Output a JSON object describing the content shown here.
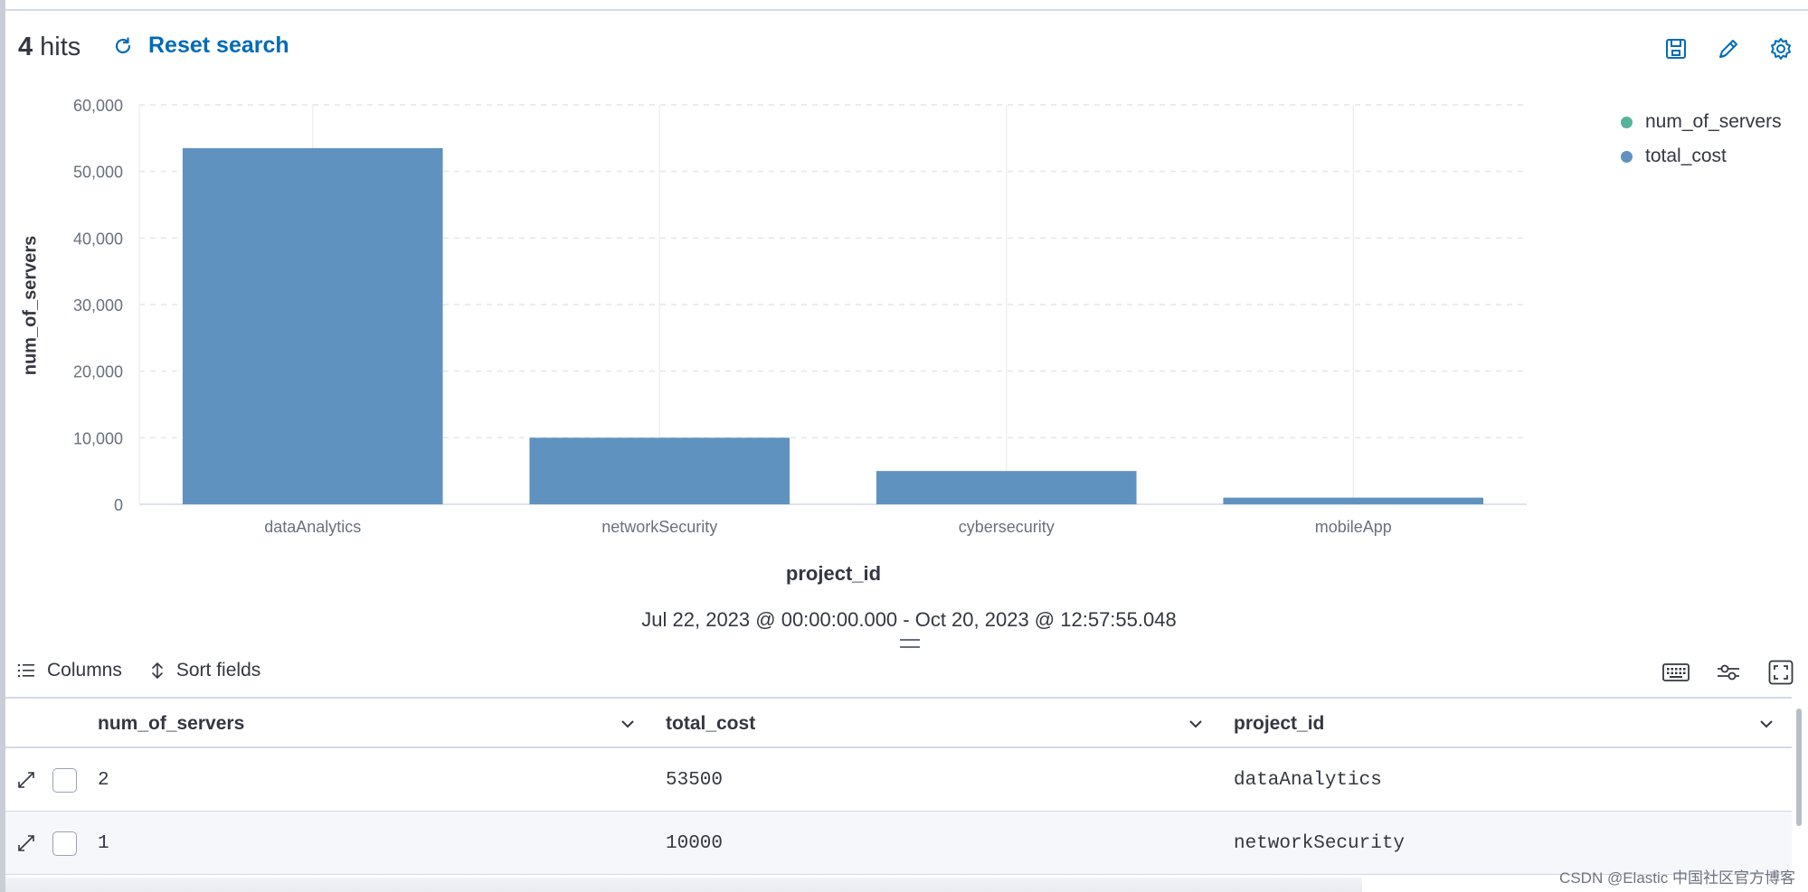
{
  "header": {
    "hits_count": "4",
    "hits_label": "hits",
    "reset_label": "Reset search",
    "icons": [
      "save-icon",
      "pencil-icon",
      "gear-icon"
    ]
  },
  "chart_data": {
    "type": "bar",
    "title": "",
    "categories": [
      "dataAnalytics",
      "networkSecurity",
      "cybersecurity",
      "mobileApp"
    ],
    "series": [
      {
        "name": "total_cost",
        "values": [
          53500,
          10000,
          5000,
          1000
        ]
      }
    ],
    "xlabel": "project_id",
    "ylabel": "num_of_servers",
    "ylim": [
      0,
      60000
    ],
    "yticks": [
      0,
      10000,
      20000,
      30000,
      40000,
      50000,
      60000
    ],
    "ytick_labels": [
      "0",
      "10,000",
      "20,000",
      "30,000",
      "40,000",
      "50,000",
      "60,000"
    ],
    "bar_color": "#6092c0",
    "grid": true,
    "legend_position": "top-right",
    "legend": [
      {
        "label": "num_of_servers",
        "color": "#54b399"
      },
      {
        "label": "total_cost",
        "color": "#6092c0"
      }
    ]
  },
  "time_range": "Jul 22, 2023 @ 00:00:00.000 - Oct 20, 2023 @ 12:57:55.048",
  "toolbar": {
    "columns_label": "Columns",
    "sort_label": "Sort fields",
    "right_icons": [
      "keyboard-icon",
      "display-settings-icon",
      "fullscreen-icon"
    ]
  },
  "grid": {
    "columns": [
      "num_of_servers",
      "total_cost",
      "project_id"
    ],
    "rows": [
      [
        "2",
        "53500",
        "dataAnalytics"
      ],
      [
        "1",
        "10000",
        "networkSecurity"
      ]
    ]
  },
  "watermark": "CSDN @Elastic 中国社区官方博客"
}
